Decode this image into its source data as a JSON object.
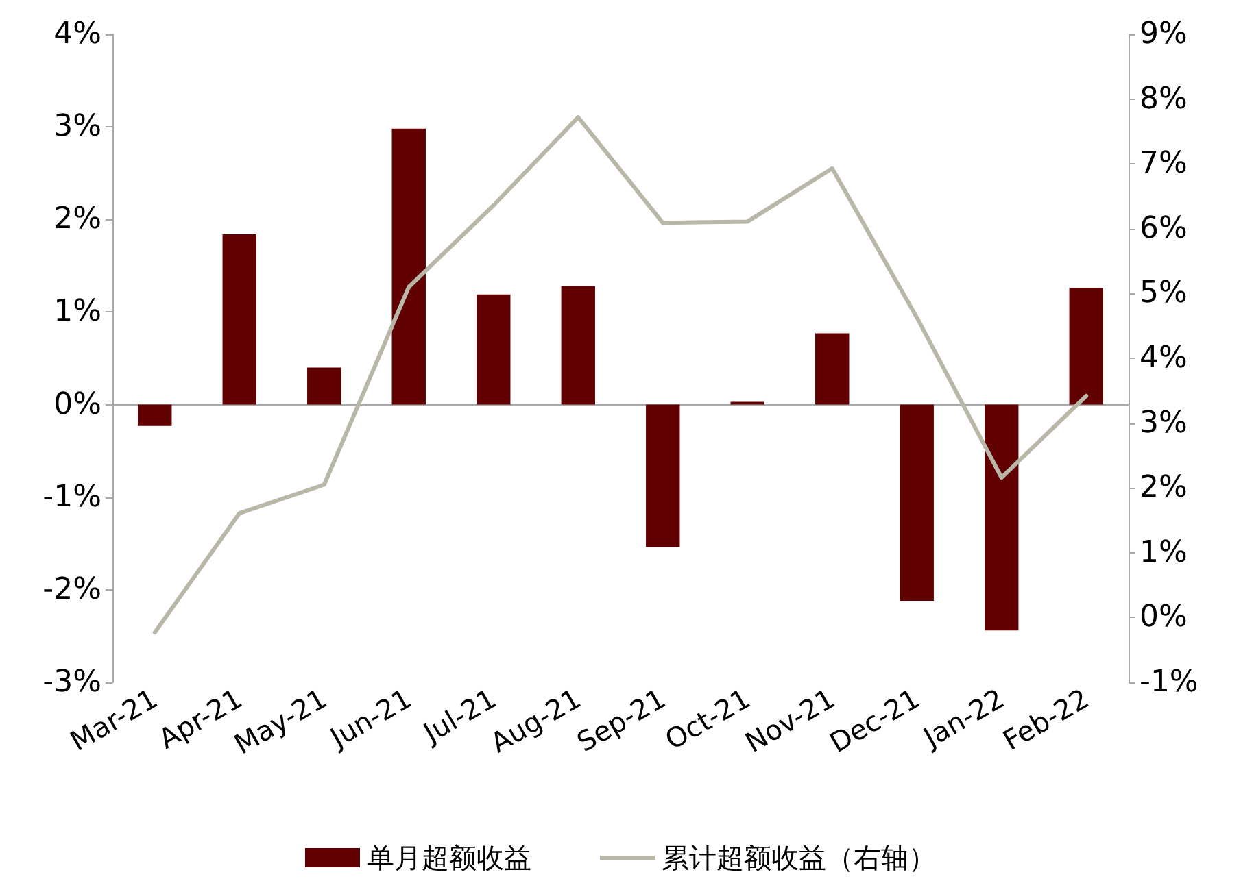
{
  "chart_data": {
    "type": "bar",
    "categories": [
      "Mar-21",
      "Apr-21",
      "May-21",
      "Jun-21",
      "Jul-21",
      "Aug-21",
      "Sep-21",
      "Oct-21",
      "Nov-21",
      "Dec-21",
      "Jan-22",
      "Feb-22"
    ],
    "series": [
      {
        "name": "单月超额收益",
        "color": "#600000",
        "values": [
          -0.23,
          1.84,
          0.4,
          2.98,
          1.19,
          1.28,
          -1.54,
          0.03,
          0.77,
          -2.12,
          -2.44,
          1.26
        ]
      },
      {
        "name": "累计超额收益（右轴）",
        "color": "#b9b8a8",
        "type": "line",
        "axis": "y2",
        "values": [
          -0.23,
          1.61,
          2.05,
          5.1,
          6.36,
          7.72,
          6.09,
          6.11,
          6.93,
          4.63,
          2.16,
          3.42
        ]
      }
    ],
    "ylim": [
      -3,
      4
    ],
    "yticks": [
      {
        "value": -3,
        "label": "-3%"
      },
      {
        "value": -2,
        "label": "-2%"
      },
      {
        "value": -1,
        "label": "-1%"
      },
      {
        "value": 0,
        "label": "0%"
      },
      {
        "value": 1,
        "label": "1%"
      },
      {
        "value": 2,
        "label": "2%"
      },
      {
        "value": 3,
        "label": "3%"
      },
      {
        "value": 4,
        "label": "4%"
      }
    ],
    "y2lim": [
      -1,
      9
    ],
    "y2ticks": [
      {
        "value": -1,
        "label": "-1%"
      },
      {
        "value": 0,
        "label": "0%"
      },
      {
        "value": 1,
        "label": "1%"
      },
      {
        "value": 2,
        "label": "2%"
      },
      {
        "value": 3,
        "label": "3%"
      },
      {
        "value": 4,
        "label": "4%"
      },
      {
        "value": 5,
        "label": "5%"
      },
      {
        "value": 6,
        "label": "6%"
      },
      {
        "value": 7,
        "label": "7%"
      },
      {
        "value": 8,
        "label": "8%"
      },
      {
        "value": 9,
        "label": "9%"
      }
    ],
    "legend": "bottom",
    "marker": "none",
    "line_style": "solid"
  }
}
